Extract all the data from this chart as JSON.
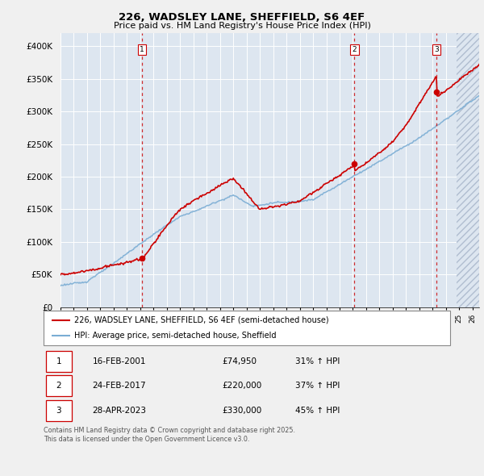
{
  "title": "226, WADSLEY LANE, SHEFFIELD, S6 4EF",
  "subtitle": "Price paid vs. HM Land Registry's House Price Index (HPI)",
  "ylim": [
    0,
    420000
  ],
  "yticks": [
    0,
    50000,
    100000,
    150000,
    200000,
    250000,
    300000,
    350000,
    400000
  ],
  "ytick_labels": [
    "£0",
    "£50K",
    "£100K",
    "£150K",
    "£200K",
    "£250K",
    "£300K",
    "£350K",
    "£400K"
  ],
  "plot_bg": "#dde6f0",
  "fig_bg": "#f0f0f0",
  "red_color": "#cc0000",
  "blue_color": "#7aadd4",
  "legend_entries": [
    "226, WADSLEY LANE, SHEFFIELD, S6 4EF (semi-detached house)",
    "HPI: Average price, semi-detached house, Sheffield"
  ],
  "transactions": [
    {
      "num": 1,
      "date": "16-FEB-2001",
      "price": "£74,950",
      "pct": "31% ↑ HPI",
      "year": 2001.12,
      "value": 74950
    },
    {
      "num": 2,
      "date": "24-FEB-2017",
      "price": "£220,000",
      "pct": "37% ↑ HPI",
      "year": 2017.12,
      "value": 220000
    },
    {
      "num": 3,
      "date": "28-APR-2023",
      "price": "£330,000",
      "pct": "45% ↑ HPI",
      "year": 2023.29,
      "value": 330000
    }
  ],
  "footer": "Contains HM Land Registry data © Crown copyright and database right 2025.\nThis data is licensed under the Open Government Licence v3.0.",
  "xmin": 1995.0,
  "xmax": 2026.5,
  "hatch_start": 2024.8
}
